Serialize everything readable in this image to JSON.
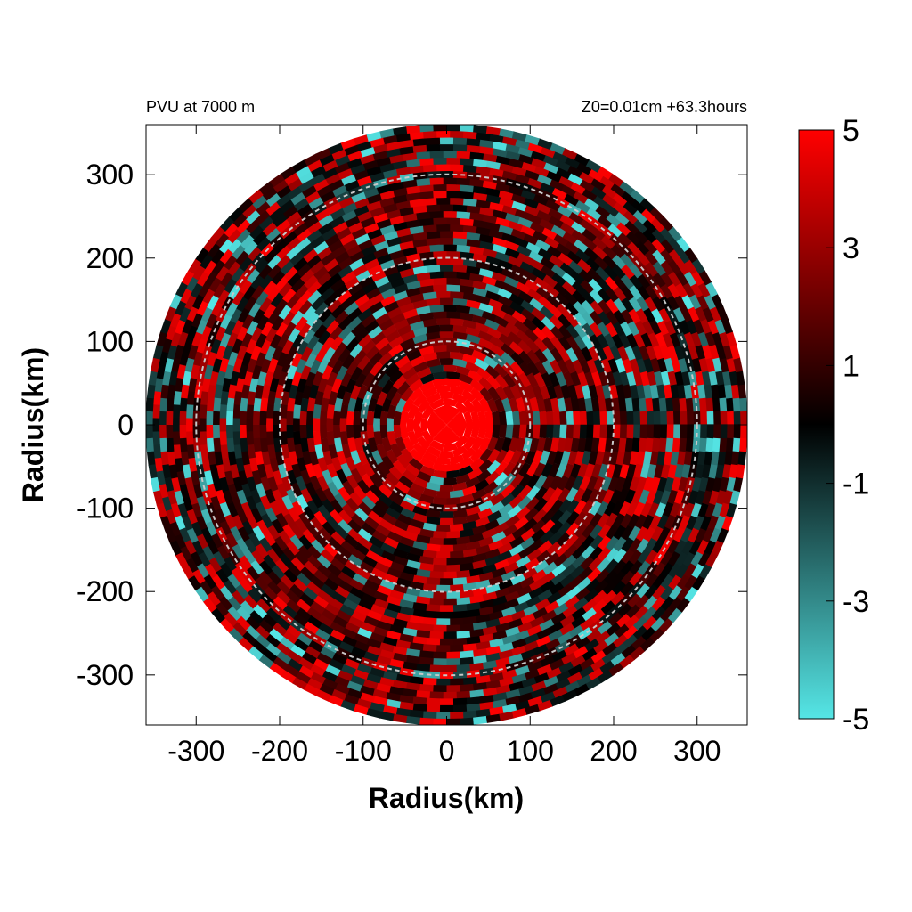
{
  "chart_data": {
    "type": "heatmap",
    "title_left": "PVU at  7000 m",
    "title_right": "Z0=0.01cm  +63.3hours",
    "xlabel": "Radius(km)",
    "ylabel": "Radius(km)",
    "xlim": [
      -360,
      360
    ],
    "ylim": [
      -360,
      360
    ],
    "x_ticks": [
      -300,
      -200,
      -100,
      0,
      100,
      200,
      300
    ],
    "y_ticks": [
      300,
      200,
      100,
      0,
      -100,
      -200,
      -300
    ],
    "domain_radius_km": 360,
    "reference_circles_km": [
      100,
      200,
      300
    ],
    "core_value_region_km": 60,
    "colorbar": {
      "min": -5,
      "max": 5,
      "ticks": [
        5,
        3,
        1,
        -1,
        -3,
        -5
      ],
      "colors": [
        "#55e6e6",
        "#000000",
        "#ff0000"
      ]
    },
    "grid": false
  }
}
